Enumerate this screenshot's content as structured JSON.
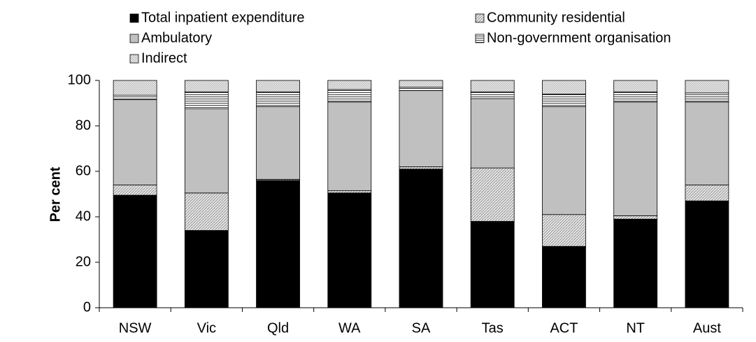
{
  "chart_data": {
    "type": "stacked-bar",
    "y_label": "Per cent",
    "categories": [
      "NSW",
      "Vic",
      "Qld",
      "WA",
      "SA",
      "Tas",
      "ACT",
      "NT",
      "Aust"
    ],
    "series": [
      {
        "name": "Total inpatient expenditure",
        "color": "#000000",
        "pattern": "solid",
        "values": [
          49.5,
          34,
          56,
          50.5,
          61,
          38,
          27,
          39,
          47
        ]
      },
      {
        "name": "Community residential",
        "color": "#d0d0d0",
        "pattern": "diagonal",
        "values": [
          4.5,
          16.5,
          0.5,
          1,
          1,
          23.5,
          14,
          1.5,
          7
        ]
      },
      {
        "name": "Ambulatory",
        "color": "#c0c0c0",
        "pattern": "solid",
        "values": [
          37.5,
          37,
          32,
          39,
          33.5,
          30.5,
          47.5,
          50,
          36.5
        ]
      },
      {
        "name": "Non-government organisation",
        "color": "#ffffff",
        "pattern": "horizontal",
        "values": [
          2,
          7.5,
          6.5,
          5.5,
          1.5,
          3,
          5.5,
          4.5,
          4
        ]
      },
      {
        "name": "Indirect",
        "color": "#e0e0e0",
        "pattern": "dots",
        "values": [
          6.5,
          5,
          5,
          4,
          3,
          5,
          6,
          5,
          5.5
        ]
      }
    ],
    "ylim": [
      0,
      100
    ],
    "yticks": [
      0,
      20,
      40,
      60,
      80,
      100
    ],
    "grid": false,
    "legend": "top"
  }
}
